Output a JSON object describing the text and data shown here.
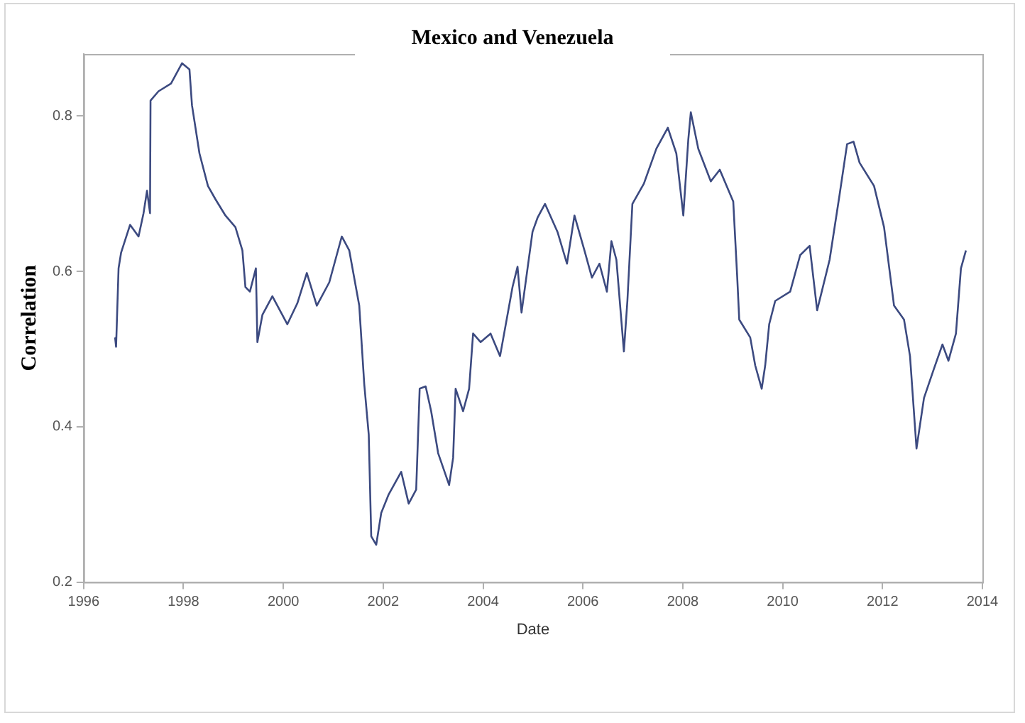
{
  "chart_data": {
    "type": "line",
    "title": "Mexico and Venezuela",
    "xlabel": "Date",
    "ylabel": "Correlation",
    "xlim": [
      1996,
      2014
    ],
    "xticks": [
      1996,
      1998,
      2000,
      2002,
      2004,
      2006,
      2008,
      2010,
      2012,
      2014
    ],
    "ylim": [
      0.2,
      0.88
    ],
    "yticks": [
      0.2,
      0.4,
      0.6,
      0.8
    ],
    "grid": false,
    "legend": false,
    "marker": "none",
    "line_style": "solid",
    "series": [
      {
        "color": "#3c4a80",
        "x": [
          1996.63,
          1996.65,
          1996.7,
          1996.75,
          1996.93,
          1997.1,
          1997.2,
          1997.27,
          1997.33,
          1997.34,
          1997.5,
          1997.75,
          1997.97,
          1998.12,
          1998.17,
          1998.32,
          1998.49,
          1998.64,
          1998.84,
          1999.04,
          1999.18,
          1999.24,
          1999.33,
          1999.45,
          1999.48,
          1999.58,
          1999.78,
          1999.93,
          2000.08,
          2000.28,
          2000.47,
          2000.67,
          2000.92,
          2001.17,
          2001.32,
          2001.52,
          2001.62,
          2001.71,
          2001.76,
          2001.86,
          2001.96,
          2002.11,
          2002.36,
          2002.51,
          2002.66,
          2002.73,
          2002.85,
          2002.96,
          2003.1,
          2003.32,
          2003.4,
          2003.45,
          2003.6,
          2003.72,
          2003.8,
          2003.95,
          2004.15,
          2004.34,
          2004.59,
          2004.69,
          2004.77,
          2004.99,
          2005.09,
          2005.24,
          2005.49,
          2005.68,
          2005.83,
          2006.03,
          2006.18,
          2006.33,
          2006.48,
          2006.57,
          2006.67,
          2006.82,
          2006.89,
          2006.99,
          2007.22,
          2007.47,
          2007.7,
          2007.87,
          2008.01,
          2008.11,
          2008.16,
          2008.31,
          2008.56,
          2008.74,
          2009.01,
          2009.09,
          2009.13,
          2009.35,
          2009.45,
          2009.58,
          2009.65,
          2009.73,
          2009.85,
          2010.15,
          2010.35,
          2010.54,
          2010.69,
          2010.94,
          2011.14,
          2011.29,
          2011.42,
          2011.54,
          2011.83,
          2012.03,
          2012.23,
          2012.43,
          2012.55,
          2012.68,
          2012.83,
          2013.02,
          2013.2,
          2013.32,
          2013.47,
          2013.57,
          2013.67
        ],
        "values": [
          0.515,
          0.503,
          0.604,
          0.624,
          0.66,
          0.645,
          0.675,
          0.704,
          0.675,
          0.82,
          0.832,
          0.842,
          0.868,
          0.86,
          0.814,
          0.752,
          0.71,
          0.693,
          0.672,
          0.657,
          0.627,
          0.58,
          0.574,
          0.604,
          0.509,
          0.544,
          0.568,
          0.55,
          0.532,
          0.559,
          0.598,
          0.556,
          0.586,
          0.645,
          0.627,
          0.556,
          0.455,
          0.39,
          0.259,
          0.248,
          0.289,
          0.313,
          0.342,
          0.301,
          0.319,
          0.449,
          0.452,
          0.42,
          0.366,
          0.325,
          0.36,
          0.449,
          0.42,
          0.449,
          0.52,
          0.509,
          0.52,
          0.491,
          0.58,
          0.606,
          0.547,
          0.651,
          0.669,
          0.687,
          0.651,
          0.61,
          0.672,
          0.627,
          0.592,
          0.61,
          0.574,
          0.639,
          0.615,
          0.497,
          0.562,
          0.687,
          0.713,
          0.758,
          0.785,
          0.752,
          0.672,
          0.77,
          0.805,
          0.758,
          0.716,
          0.731,
          0.69,
          0.592,
          0.538,
          0.515,
          0.479,
          0.449,
          0.479,
          0.532,
          0.562,
          0.574,
          0.621,
          0.633,
          0.55,
          0.615,
          0.699,
          0.764,
          0.767,
          0.74,
          0.71,
          0.657,
          0.556,
          0.538,
          0.491,
          0.372,
          0.437,
          0.473,
          0.506,
          0.485,
          0.52,
          0.604,
          0.627
        ]
      }
    ]
  }
}
